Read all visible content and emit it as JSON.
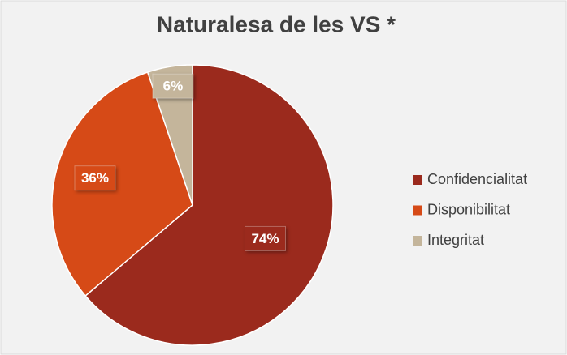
{
  "chart_data": {
    "type": "pie",
    "title": "Naturalesa de les VS *",
    "categories": [
      "Confidencialitat",
      "Disponibilitat",
      "Integritat"
    ],
    "values": [
      74,
      36,
      6
    ],
    "value_labels": [
      "74%",
      "36%",
      "6%"
    ],
    "colors": [
      "#9b2a1d",
      "#d64a17",
      "#c4b59b"
    ],
    "legend": "right"
  }
}
